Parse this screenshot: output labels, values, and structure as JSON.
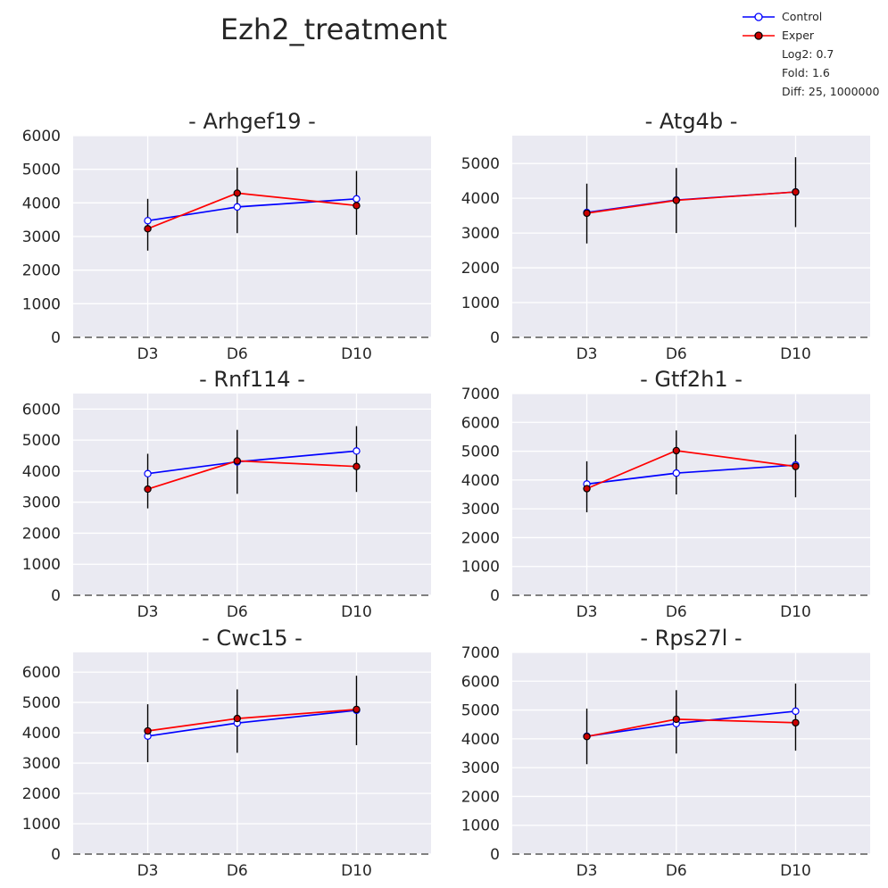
{
  "figure": {
    "title": "Ezh2_treatment"
  },
  "legend": {
    "entries": [
      {
        "label": "Control",
        "color": "#0000ff",
        "marker_fill": "#ffffff"
      },
      {
        "label": "Exper",
        "color": "#ff0000",
        "marker_fill": "#cc0000"
      }
    ],
    "notes": [
      "Log2: 0.7",
      "Fold: 1.6",
      "Diff: 25, 1000000"
    ]
  },
  "colors": {
    "axes_bg": "#eaeaf2",
    "grid": "#ffffff",
    "control": "#0000ff",
    "exper": "#ff0000",
    "errorbar": "#000000",
    "zero_line": "#808080"
  },
  "chart_data": [
    {
      "type": "line",
      "title": "- Arhgef19 -",
      "categories": [
        "D3",
        "D6",
        "D10"
      ],
      "x": [
        3,
        6,
        10
      ],
      "xlim": [
        0.5,
        12.5
      ],
      "ylim": [
        0,
        6000
      ],
      "yticks": [
        0,
        1000,
        2000,
        3000,
        4000,
        5000,
        6000
      ],
      "errorbar_range": [
        [
          2580,
          4120
        ],
        [
          3100,
          5050
        ],
        [
          3050,
          4950
        ]
      ],
      "series": [
        {
          "name": "Control",
          "values": [
            3470,
            3880,
            4120
          ]
        },
        {
          "name": "Exper",
          "values": [
            3230,
            4290,
            3920
          ]
        }
      ]
    },
    {
      "type": "line",
      "title": "- Atg4b -",
      "categories": [
        "D3",
        "D6",
        "D10"
      ],
      "x": [
        3,
        6,
        10
      ],
      "xlim": [
        0.5,
        12.5
      ],
      "ylim": [
        0,
        5800
      ],
      "yticks": [
        0,
        1000,
        2000,
        3000,
        4000,
        5000
      ],
      "errorbar_range": [
        [
          2700,
          4420
        ],
        [
          3000,
          4870
        ],
        [
          3170,
          5180
        ]
      ],
      "series": [
        {
          "name": "Control",
          "values": [
            3590,
            3950,
            4180
          ]
        },
        {
          "name": "Exper",
          "values": [
            3570,
            3940,
            4180
          ]
        }
      ]
    },
    {
      "type": "line",
      "title": "- Rnf114 -",
      "categories": [
        "D3",
        "D6",
        "D10"
      ],
      "x": [
        3,
        6,
        10
      ],
      "xlim": [
        0.5,
        12.5
      ],
      "ylim": [
        0,
        6500
      ],
      "yticks": [
        0,
        1000,
        2000,
        3000,
        4000,
        5000,
        6000
      ],
      "errorbar_range": [
        [
          2800,
          4560
        ],
        [
          3270,
          5330
        ],
        [
          3330,
          5450
        ]
      ],
      "series": [
        {
          "name": "Control",
          "values": [
            3920,
            4300,
            4650
          ]
        },
        {
          "name": "Exper",
          "values": [
            3420,
            4330,
            4150
          ]
        }
      ]
    },
    {
      "type": "line",
      "title": "- Gtf2h1 -",
      "categories": [
        "D3",
        "D6",
        "D10"
      ],
      "x": [
        3,
        6,
        10
      ],
      "xlim": [
        0.5,
        12.5
      ],
      "ylim": [
        0,
        7000
      ],
      "yticks": [
        0,
        1000,
        2000,
        3000,
        4000,
        5000,
        6000,
        7000
      ],
      "errorbar_range": [
        [
          2880,
          4650
        ],
        [
          3500,
          5720
        ],
        [
          3400,
          5580
        ]
      ],
      "series": [
        {
          "name": "Control",
          "values": [
            3860,
            4240,
            4520
          ]
        },
        {
          "name": "Exper",
          "values": [
            3700,
            5020,
            4470
          ]
        }
      ]
    },
    {
      "type": "line",
      "title": "- Cwc15 -",
      "categories": [
        "D3",
        "D6",
        "D10"
      ],
      "x": [
        3,
        6,
        10
      ],
      "xlim": [
        0.5,
        12.5
      ],
      "ylim": [
        0,
        6650
      ],
      "yticks": [
        0,
        1000,
        2000,
        3000,
        4000,
        5000,
        6000
      ],
      "errorbar_range": [
        [
          3030,
          4940
        ],
        [
          3340,
          5430
        ],
        [
          3590,
          5880
        ]
      ],
      "series": [
        {
          "name": "Control",
          "values": [
            3890,
            4320,
            4740
          ]
        },
        {
          "name": "Exper",
          "values": [
            4060,
            4470,
            4770
          ]
        }
      ]
    },
    {
      "type": "line",
      "title": "- Rps27l -",
      "categories": [
        "D3",
        "D6",
        "D10"
      ],
      "x": [
        3,
        6,
        10
      ],
      "xlim": [
        0.5,
        12.5
      ],
      "ylim": [
        0,
        7000
      ],
      "yticks": [
        0,
        1000,
        2000,
        3000,
        4000,
        5000,
        6000,
        7000
      ],
      "errorbar_range": [
        [
          3120,
          5050
        ],
        [
          3490,
          5690
        ],
        [
          3590,
          5920
        ]
      ],
      "series": [
        {
          "name": "Control",
          "values": [
            4090,
            4530,
            4960
          ]
        },
        {
          "name": "Exper",
          "values": [
            4080,
            4680,
            4560
          ]
        }
      ]
    }
  ]
}
